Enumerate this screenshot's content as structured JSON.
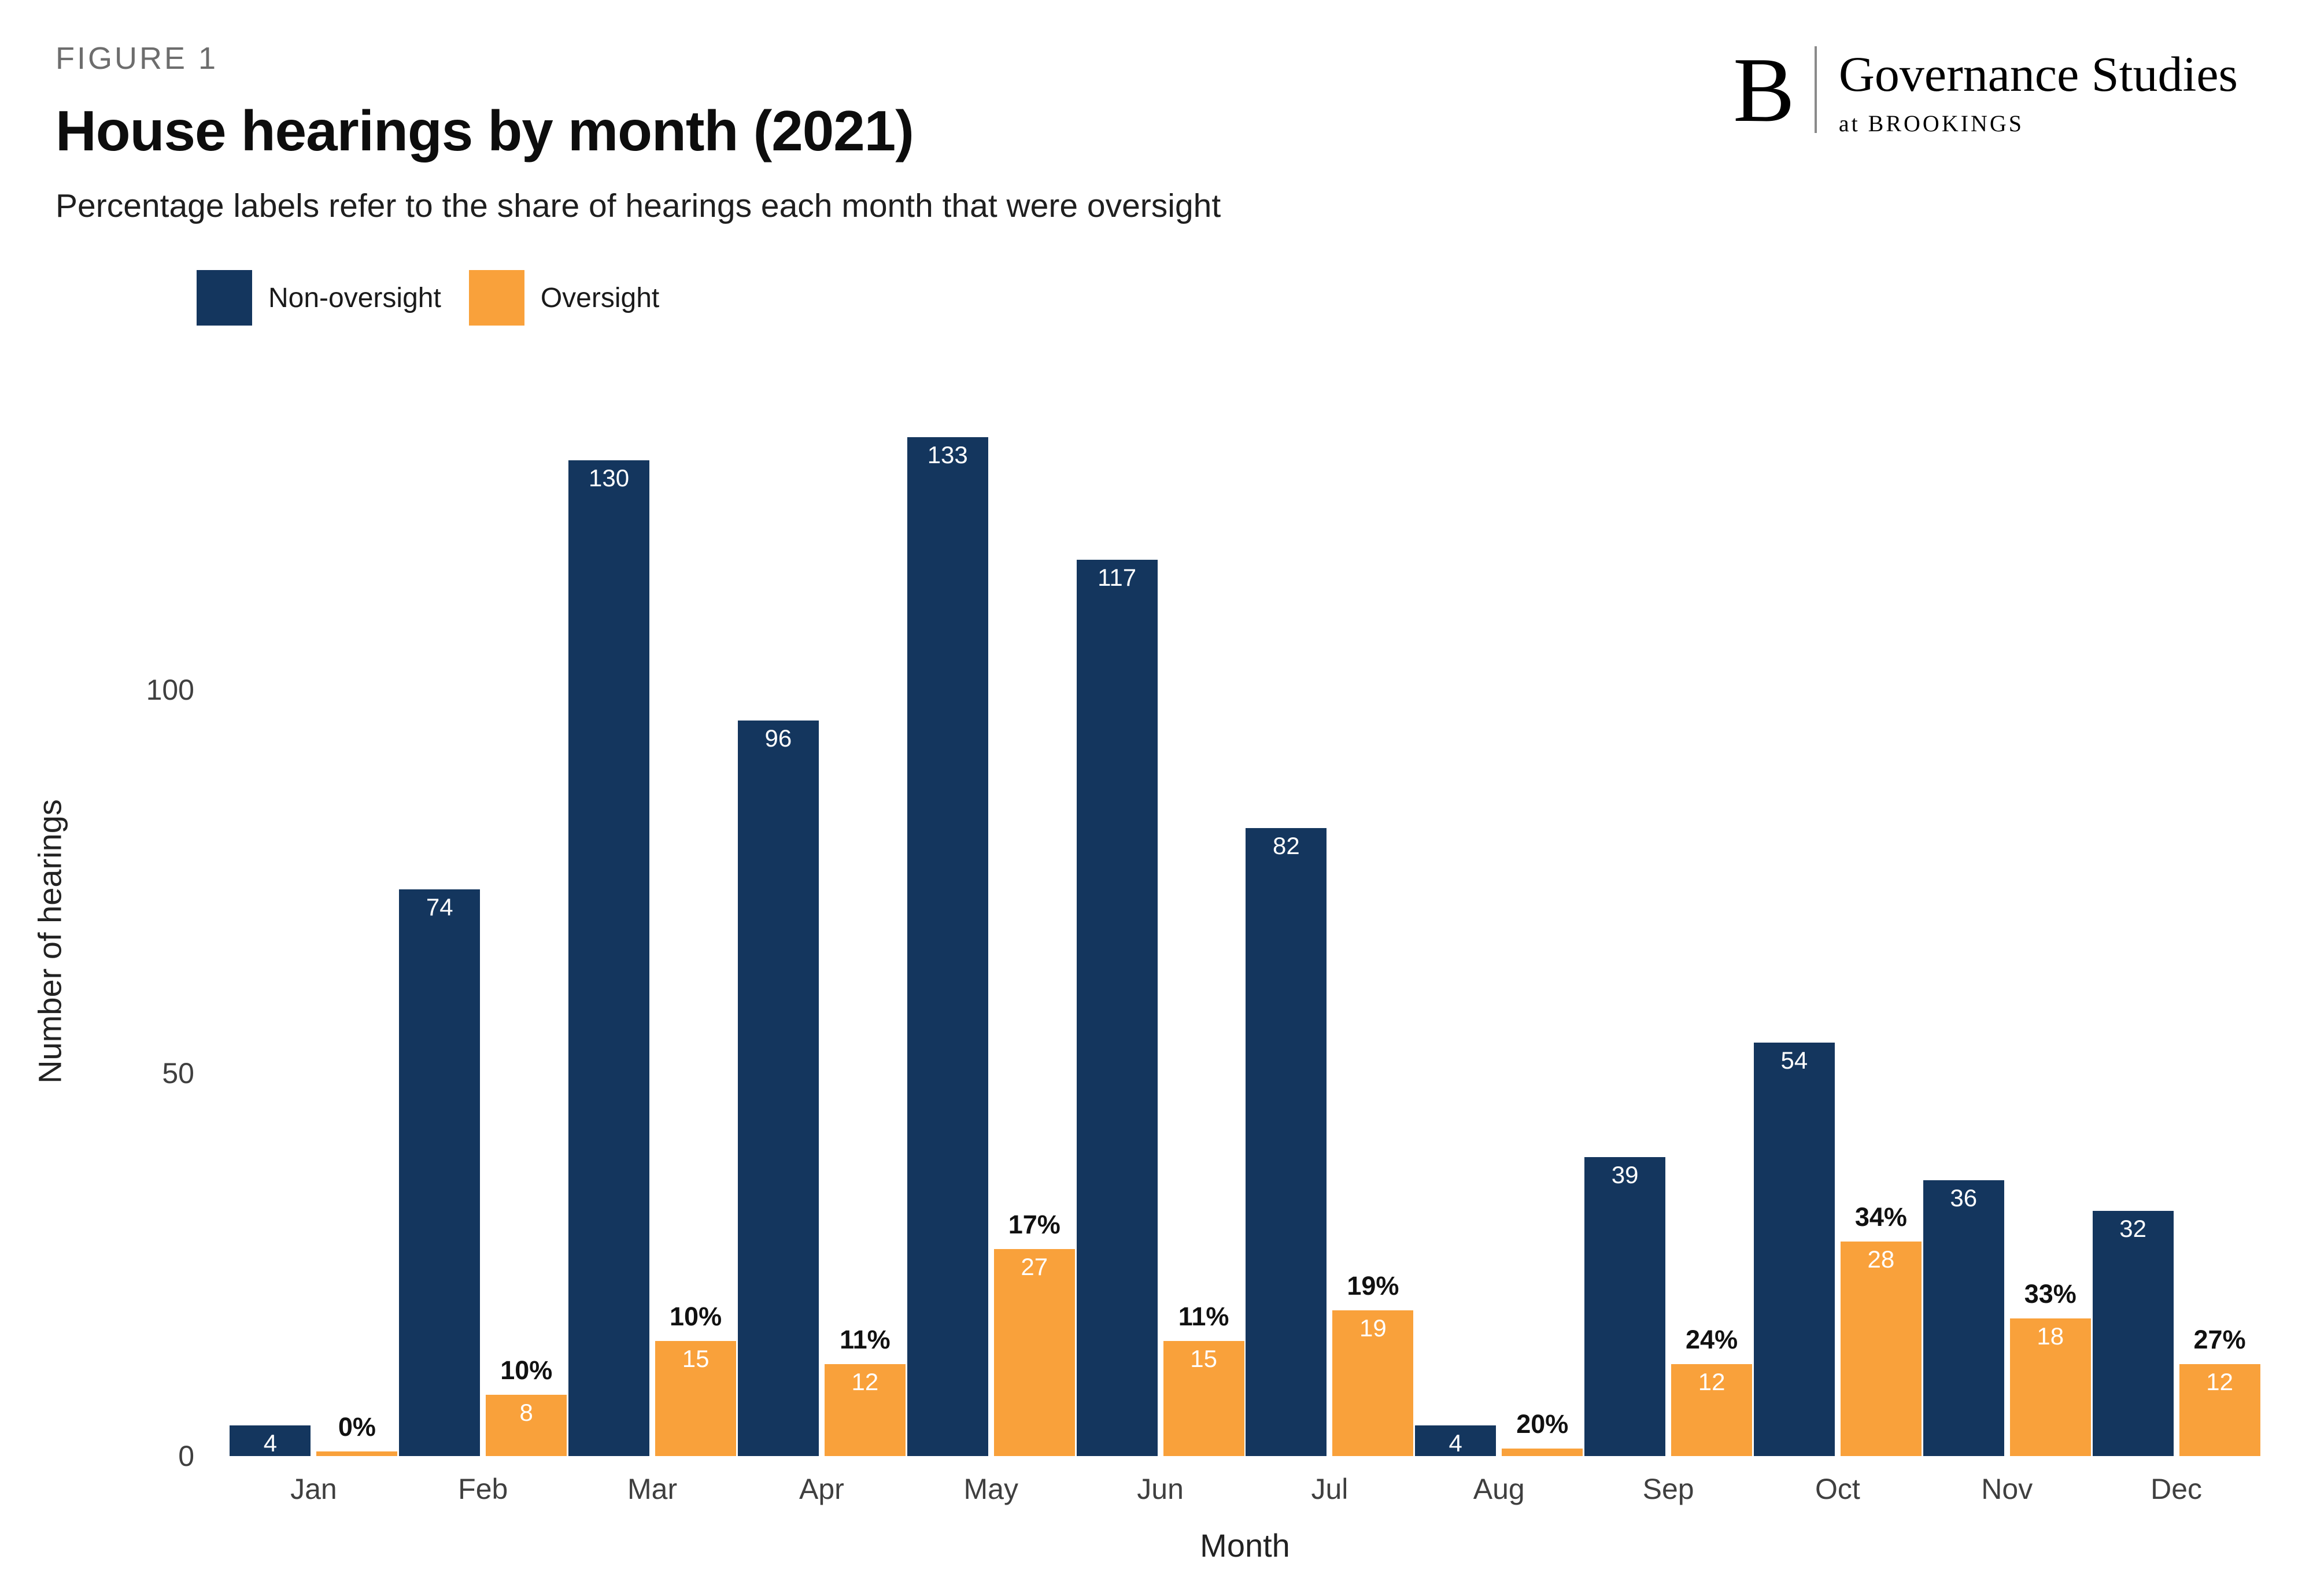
{
  "header": {
    "figure_label": "FIGURE 1",
    "title": "House hearings by month (2021)",
    "subtitle": "Percentage labels refer to the share of hearings each month that were oversight"
  },
  "logo": {
    "letter": "B",
    "name": "Governance Studies",
    "sub": "at BROOKINGS"
  },
  "legend": {
    "items": [
      {
        "label": "Non-oversight",
        "color": "#14365E"
      },
      {
        "label": "Oversight",
        "color": "#F9A13B"
      }
    ]
  },
  "chart_data": {
    "type": "bar",
    "title": "House hearings by month (2021)",
    "xlabel": "Month",
    "ylabel": "Number of hearings",
    "categories": [
      "Jan",
      "Feb",
      "Mar",
      "Apr",
      "May",
      "Jun",
      "Jul",
      "Aug",
      "Sep",
      "Oct",
      "Nov",
      "Dec"
    ],
    "series": [
      {
        "name": "Non-oversight",
        "color": "#14365E",
        "values": [
          4,
          74,
          130,
          96,
          133,
          117,
          82,
          4,
          39,
          54,
          36,
          32
        ]
      },
      {
        "name": "Oversight",
        "color": "#F9A13B",
        "values": [
          0,
          8,
          15,
          12,
          27,
          15,
          19,
          1,
          12,
          28,
          18,
          12
        ]
      }
    ],
    "pct_labels": [
      "0%",
      "10%",
      "10%",
      "11%",
      "17%",
      "11%",
      "19%",
      "20%",
      "24%",
      "34%",
      "33%",
      "27%"
    ],
    "yticks": [
      0,
      50,
      100
    ],
    "ylim": [
      0,
      140
    ],
    "grid": false,
    "legend_position": "top-left",
    "colors": {
      "navy": "#14365E",
      "orange": "#F9A13B"
    }
  }
}
